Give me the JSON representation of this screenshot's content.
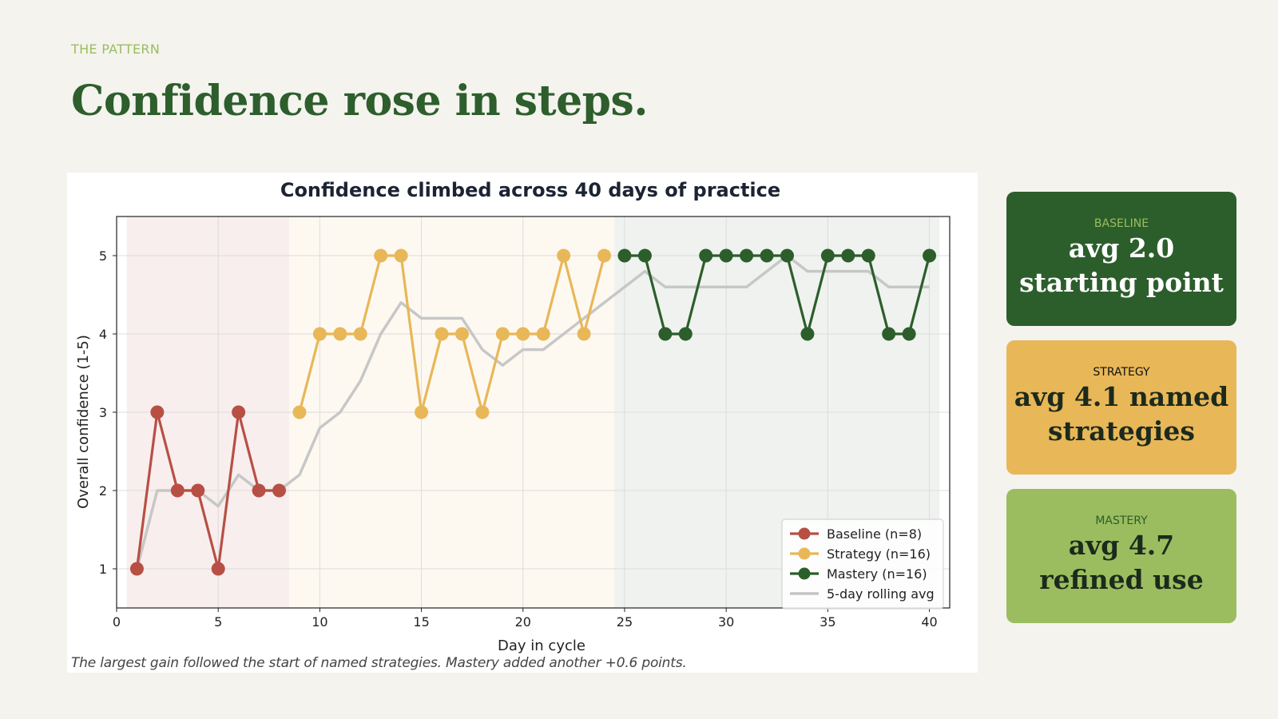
{
  "slide": {
    "eyebrow": "THE PATTERN",
    "headline": "Confidence rose in steps.",
    "caption": "The largest gain followed the start of named strategies. Mastery added another +0.6 points."
  },
  "cards": [
    {
      "label": "BASELINE",
      "value": "avg 2.0 starting point",
      "color": "#2c5e2c"
    },
    {
      "label": "STRATEGY",
      "value": "avg 4.1 named strategies",
      "color": "#e8b758"
    },
    {
      "label": "MASTERY",
      "value": "avg 4.7 refined use",
      "color": "#9bbd5f"
    }
  ],
  "chart_data": {
    "type": "line",
    "title": "Confidence climbed across 40 days of practice",
    "xlabel": "Day in cycle",
    "ylabel": "Overall confidence (1-5)",
    "xlim": [
      0,
      41
    ],
    "ylim": [
      0.5,
      5.5
    ],
    "xticks": [
      0,
      5,
      10,
      15,
      20,
      25,
      30,
      35,
      40
    ],
    "yticks": [
      1,
      2,
      3,
      4,
      5
    ],
    "grid": true,
    "legend_position": "lower-right",
    "phases": [
      {
        "name": "Baseline",
        "x_start": 0.5,
        "x_end": 8.5,
        "color": "#f8eeee"
      },
      {
        "name": "Strategy",
        "x_start": 8.5,
        "x_end": 24.5,
        "color": "#fdf9f1"
      },
      {
        "name": "Mastery",
        "x_start": 24.5,
        "x_end": 40.5,
        "color": "#f0f2ef"
      }
    ],
    "series": [
      {
        "name": "Baseline (n=8)",
        "color": "#b84f45",
        "x": [
          1,
          2,
          3,
          4,
          5,
          6,
          7,
          8
        ],
        "values": [
          1,
          3,
          2,
          2,
          1,
          3,
          2,
          2
        ]
      },
      {
        "name": "Strategy (n=16)",
        "color": "#e8b758",
        "x": [
          9,
          10,
          11,
          12,
          13,
          14,
          15,
          16,
          17,
          18,
          19,
          20,
          21,
          22,
          23,
          24
        ],
        "values": [
          3,
          4,
          4,
          4,
          5,
          5,
          3,
          4,
          4,
          3,
          4,
          4,
          4,
          5,
          4,
          5
        ]
      },
      {
        "name": "Mastery (n=16)",
        "color": "#2c5e2c",
        "x": [
          25,
          26,
          27,
          28,
          29,
          30,
          31,
          32,
          33,
          34,
          35,
          36,
          37,
          38,
          39,
          40
        ],
        "values": [
          5,
          5,
          4,
          4,
          5,
          5,
          5,
          5,
          5,
          4,
          5,
          5,
          5,
          4,
          4,
          5
        ]
      },
      {
        "name": "5-day rolling avg",
        "color": "#c4c4c4",
        "x": [
          1,
          2,
          3,
          4,
          5,
          6,
          7,
          8,
          9,
          10,
          11,
          12,
          13,
          14,
          15,
          16,
          17,
          18,
          19,
          20,
          21,
          22,
          23,
          24,
          25,
          26,
          27,
          28,
          29,
          30,
          31,
          32,
          33,
          34,
          35,
          36,
          37,
          38,
          39,
          40
        ],
        "values": [
          1.0,
          2.0,
          2.0,
          2.0,
          1.8,
          2.2,
          2.0,
          2.0,
          2.2,
          2.8,
          3.0,
          3.4,
          4.0,
          4.4,
          4.2,
          4.2,
          4.2,
          3.8,
          3.6,
          3.8,
          3.8,
          4.0,
          4.2,
          4.4,
          4.6,
          4.8,
          4.6,
          4.6,
          4.6,
          4.6,
          4.6,
          4.8,
          5.0,
          4.8,
          4.8,
          4.8,
          4.8,
          4.6,
          4.6,
          4.6
        ]
      }
    ]
  }
}
